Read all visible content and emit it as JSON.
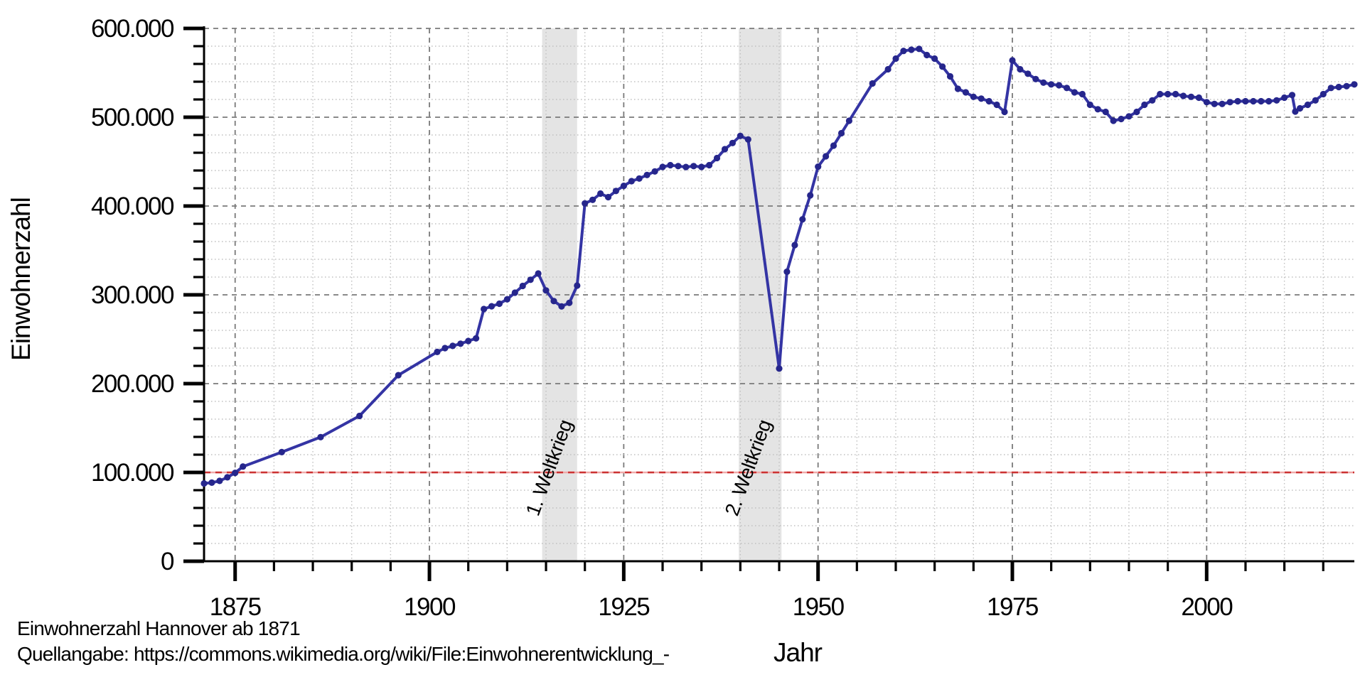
{
  "chart_data": {
    "type": "line",
    "title": "Einwohnerzahl Hannover ab 1871",
    "source": "Quellangabe: https://commons.wikimedia.org/wiki/File:Einwohnerentwicklung_-",
    "xlabel": "Jahr",
    "ylabel": "Einwohnerzahl",
    "x_range": [
      1871,
      2019
    ],
    "y_range": [
      0,
      600000
    ],
    "grid": true,
    "legend": "none",
    "y_ticks": [
      {
        "v": 0,
        "label": "0"
      },
      {
        "v": 100000,
        "label": "100.000"
      },
      {
        "v": 200000,
        "label": "200.000"
      },
      {
        "v": 300000,
        "label": "300.000"
      },
      {
        "v": 400000,
        "label": "400.000"
      },
      {
        "v": 500000,
        "label": "500.000"
      },
      {
        "v": 600000,
        "label": "600.000"
      }
    ],
    "y_minor_step": 20000,
    "x_ticks": [
      {
        "v": 1875,
        "label": "1875"
      },
      {
        "v": 1900,
        "label": "1900"
      },
      {
        "v": 1925,
        "label": "1925"
      },
      {
        "v": 1950,
        "label": "1950"
      },
      {
        "v": 1975,
        "label": "1975"
      },
      {
        "v": 2000,
        "label": "2000"
      }
    ],
    "x_minor_step": 5,
    "reference_line": {
      "value": 100000,
      "color": "#cc3333",
      "underlay_color": "#f0aaaa"
    },
    "bands": [
      {
        "label": "1. Weltkrieg",
        "from": 1914.5,
        "to": 1919.0,
        "color": "#e4e4e4"
      },
      {
        "label": "2. Weltkrieg",
        "from": 1939.8,
        "to": 1945.3,
        "color": "#e4e4e4"
      }
    ],
    "colors": {
      "line": "#3434a4",
      "point": "#26268c",
      "grid_major": "#7a7a7a",
      "grid_minor": "#c0c0c0",
      "axis": "#000000"
    },
    "series": [
      {
        "name": "Einwohnerzahl",
        "points": [
          [
            1871,
            87626
          ],
          [
            1872,
            88500
          ],
          [
            1873,
            90500
          ],
          [
            1874,
            94500
          ],
          [
            1875,
            99500
          ],
          [
            1876,
            106677
          ],
          [
            1881,
            122843
          ],
          [
            1886,
            139731
          ],
          [
            1891,
            163593
          ],
          [
            1896,
            209535
          ],
          [
            1901,
            235649
          ],
          [
            1902,
            240000
          ],
          [
            1903,
            242500
          ],
          [
            1904,
            245000
          ],
          [
            1905,
            248000
          ],
          [
            1906,
            251000
          ],
          [
            1907,
            284000
          ],
          [
            1908,
            287156
          ],
          [
            1909,
            290000
          ],
          [
            1910,
            295000
          ],
          [
            1911,
            302375
          ],
          [
            1912,
            310000
          ],
          [
            1913,
            317000
          ],
          [
            1914,
            324000
          ],
          [
            1915,
            305000
          ],
          [
            1916,
            293000
          ],
          [
            1917,
            287000
          ],
          [
            1918,
            291000
          ],
          [
            1919,
            310431
          ],
          [
            1920,
            403000
          ],
          [
            1921,
            407000
          ],
          [
            1922,
            414000
          ],
          [
            1923,
            410000
          ],
          [
            1924,
            417000
          ],
          [
            1925,
            422745
          ],
          [
            1926,
            428000
          ],
          [
            1927,
            431000
          ],
          [
            1928,
            435000
          ],
          [
            1929,
            439000
          ],
          [
            1930,
            444000
          ],
          [
            1931,
            446000
          ],
          [
            1932,
            445000
          ],
          [
            1933,
            443920
          ],
          [
            1934,
            445000
          ],
          [
            1935,
            444000
          ],
          [
            1936,
            446000
          ],
          [
            1937,
            454000
          ],
          [
            1938,
            464000
          ],
          [
            1939,
            471000
          ],
          [
            1940,
            479000
          ],
          [
            1941,
            475000
          ],
          [
            1945,
            217000
          ],
          [
            1946,
            326000
          ],
          [
            1947,
            356000
          ],
          [
            1948,
            385000
          ],
          [
            1949,
            412000
          ],
          [
            1950,
            444296
          ],
          [
            1951,
            456000
          ],
          [
            1952,
            468000
          ],
          [
            1953,
            482000
          ],
          [
            1954,
            496000
          ],
          [
            1957,
            538000
          ],
          [
            1959,
            554000
          ],
          [
            1960,
            566000
          ],
          [
            1961,
            574672
          ],
          [
            1962,
            576000
          ],
          [
            1963,
            577000
          ],
          [
            1964,
            570000
          ],
          [
            1965,
            566000
          ],
          [
            1966,
            557000
          ],
          [
            1967,
            546000
          ],
          [
            1968,
            532000
          ],
          [
            1969,
            528000
          ],
          [
            1970,
            523000
          ],
          [
            1971,
            521000
          ],
          [
            1972,
            518000
          ],
          [
            1973,
            514000
          ],
          [
            1974,
            506000
          ],
          [
            1975,
            564000
          ],
          [
            1976,
            554000
          ],
          [
            1977,
            549000
          ],
          [
            1978,
            543000
          ],
          [
            1979,
            539000
          ],
          [
            1980,
            537000
          ],
          [
            1981,
            536000
          ],
          [
            1982,
            533000
          ],
          [
            1983,
            528000
          ],
          [
            1984,
            526000
          ],
          [
            1985,
            514000
          ],
          [
            1986,
            509000
          ],
          [
            1987,
            506000
          ],
          [
            1988,
            496000
          ],
          [
            1989,
            498000
          ],
          [
            1990,
            501000
          ],
          [
            1991,
            506000
          ],
          [
            1992,
            514000
          ],
          [
            1993,
            519000
          ],
          [
            1994,
            526000
          ],
          [
            1995,
            526000
          ],
          [
            1996,
            526000
          ],
          [
            1997,
            524000
          ],
          [
            1998,
            523000
          ],
          [
            1999,
            522000
          ],
          [
            2000,
            517000
          ],
          [
            2001,
            515000
          ],
          [
            2002,
            515000
          ],
          [
            2003,
            517000
          ],
          [
            2004,
            518000
          ],
          [
            2005,
            518000
          ],
          [
            2006,
            518000
          ],
          [
            2007,
            518000
          ],
          [
            2008,
            518000
          ],
          [
            2009,
            519000
          ],
          [
            2010,
            522000
          ],
          [
            2011,
            525000
          ],
          [
            2011.4,
            506416
          ],
          [
            2012,
            510000
          ],
          [
            2013,
            514000
          ],
          [
            2014,
            519000
          ],
          [
            2015,
            526000
          ],
          [
            2016,
            533000
          ],
          [
            2017,
            534000
          ],
          [
            2018,
            535000
          ],
          [
            2019,
            537000
          ]
        ]
      }
    ]
  }
}
